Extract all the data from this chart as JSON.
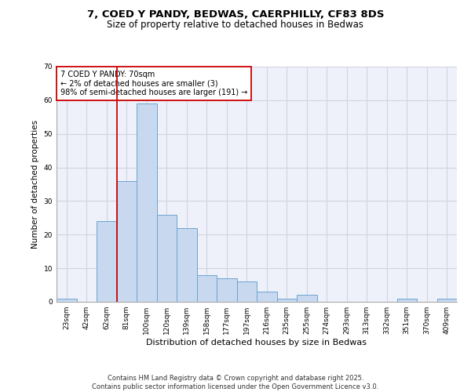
{
  "title_line1": "7, COED Y PANDY, BEDWAS, CAERPHILLY, CF83 8DS",
  "title_line2": "Size of property relative to detached houses in Bedwas",
  "xlabel": "Distribution of detached houses by size in Bedwas",
  "ylabel": "Number of detached properties",
  "bar_values": [
    1,
    0,
    24,
    36,
    59,
    26,
    22,
    8,
    7,
    6,
    3,
    1,
    2,
    0,
    0,
    0,
    0,
    1,
    0,
    1
  ],
  "bar_labels": [
    "23sqm",
    "42sqm",
    "62sqm",
    "81sqm",
    "100sqm",
    "120sqm",
    "139sqm",
    "158sqm",
    "177sqm",
    "197sqm",
    "216sqm",
    "235sqm",
    "255sqm",
    "274sqm",
    "293sqm",
    "313sqm",
    "332sqm",
    "351sqm",
    "370sqm",
    "409sqm"
  ],
  "bar_color": "#c8d9ef",
  "bar_edge_color": "#6ba3d0",
  "red_line_index": 2,
  "annotation_text": "7 COED Y PANDY: 70sqm\n← 2% of detached houses are smaller (3)\n98% of semi-detached houses are larger (191) →",
  "annotation_box_color": "#ffffff",
  "annotation_box_edge": "#cc0000",
  "ylim": [
    0,
    70
  ],
  "yticks": [
    0,
    10,
    20,
    30,
    40,
    50,
    60,
    70
  ],
  "grid_color": "#d0d4e0",
  "background_color": "#eef1fa",
  "footer_line1": "Contains HM Land Registry data © Crown copyright and database right 2025.",
  "footer_line2": "Contains public sector information licensed under the Open Government Licence v3.0.",
  "title_fontsize": 9.5,
  "subtitle_fontsize": 8.5,
  "axis_label_fontsize": 7.5,
  "tick_fontsize": 6.5,
  "annotation_fontsize": 7,
  "footer_fontsize": 6
}
